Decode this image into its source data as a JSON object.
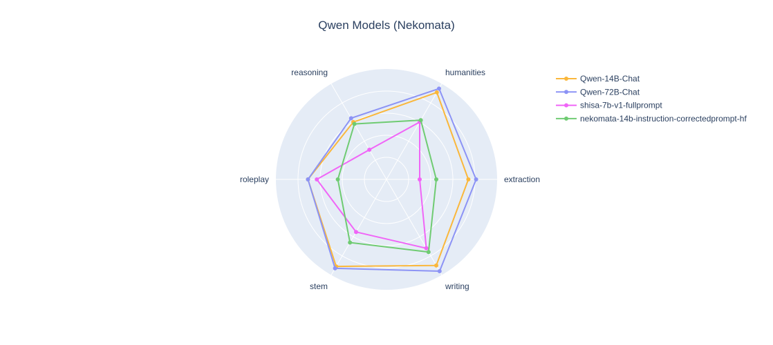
{
  "chart_data": {
    "type": "radar",
    "title": "Qwen Models (Nekomata)",
    "axes": [
      "humanities",
      "extraction",
      "writing",
      "stem",
      "roleplay",
      "reasoning"
    ],
    "rlim": [
      0,
      10
    ],
    "grid": true,
    "legend_position": "top-right",
    "series": [
      {
        "name": "Qwen-14B-Chat",
        "color": "#fab73b",
        "values": [
          9.1,
          7.4,
          9.0,
          9.1,
          7.1,
          6.0
        ]
      },
      {
        "name": "Qwen-72B-Chat",
        "color": "#8c93f5",
        "values": [
          9.5,
          8.1,
          9.6,
          9.3,
          7.1,
          6.4
        ]
      },
      {
        "name": "shisa-7b-v1-fullprompt",
        "color": "#f065f7",
        "values": [
          6.0,
          3.0,
          7.2,
          5.5,
          6.3,
          3.1
        ]
      },
      {
        "name": "nekomata-14b-instruction-correctedprompt-hf",
        "color": "#6fcb72",
        "values": [
          6.2,
          4.5,
          7.6,
          6.6,
          4.4,
          5.8
        ]
      }
    ]
  }
}
